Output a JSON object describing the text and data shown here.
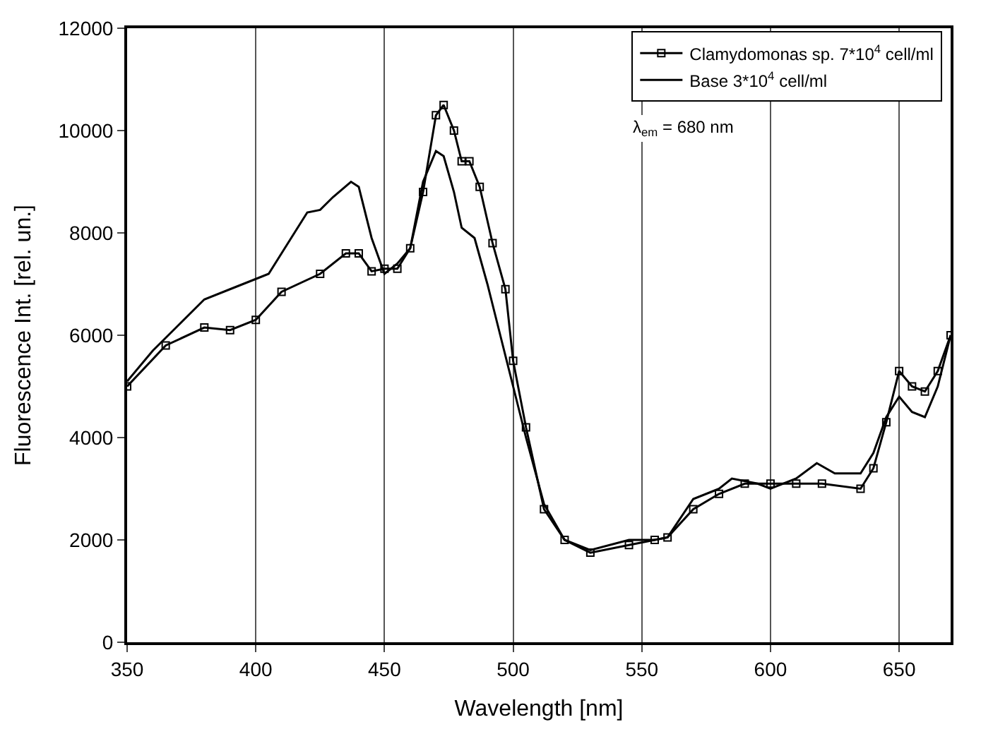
{
  "chart_data": {
    "type": "line",
    "xlabel": "Wavelength [nm]",
    "ylabel": "Fluorescence Int. [rel. un.]",
    "xlim": [
      350,
      670
    ],
    "ylim": [
      0,
      12000
    ],
    "xticks": [
      350,
      400,
      450,
      500,
      550,
      600,
      650
    ],
    "yticks": [
      0,
      2000,
      4000,
      6000,
      8000,
      10000,
      12000
    ],
    "grid": "x",
    "legend": "top right",
    "annotations": [
      "λ$_{em}$ = 680 nm"
    ],
    "series": [
      {
        "name": "Clamydomonas sp. 7*10$^{4}$ cell/ml",
        "color": "#000000",
        "marker": "square",
        "x": [
          350,
          365,
          380,
          390,
          400,
          410,
          425,
          435,
          440,
          445,
          450,
          455,
          460,
          465,
          470,
          473,
          477,
          480,
          483,
          487,
          492,
          497,
          500,
          505,
          512,
          520,
          530,
          545,
          555,
          560,
          570,
          580,
          590,
          600,
          610,
          620,
          635,
          640,
          645,
          650,
          655,
          660,
          665,
          670
        ],
        "values": [
          5000,
          5800,
          6150,
          6100,
          6300,
          6850,
          7200,
          7600,
          7600,
          7250,
          7300,
          7300,
          7700,
          8800,
          10300,
          10500,
          10000,
          9400,
          9400,
          8900,
          7800,
          6900,
          5500,
          4200,
          2600,
          2000,
          1750,
          1900,
          2000,
          2050,
          2600,
          2900,
          3100,
          3100,
          3100,
          3100,
          3000,
          3400,
          4300,
          5300,
          5000,
          4900,
          5300,
          6000
        ]
      },
      {
        "name": "Base 3*10$^{4}$ cell/ml",
        "color": "#000000",
        "marker": "none",
        "x": [
          350,
          360,
          370,
          380,
          390,
          400,
          405,
          410,
          415,
          420,
          425,
          430,
          437,
          440,
          445,
          450,
          455,
          460,
          465,
          470,
          473,
          477,
          480,
          485,
          490,
          495,
          500,
          505,
          512,
          520,
          530,
          545,
          555,
          560,
          570,
          580,
          585,
          595,
          600,
          610,
          618,
          625,
          635,
          640,
          645,
          650,
          655,
          660,
          665,
          670
        ],
        "values": [
          5100,
          5700,
          6200,
          6700,
          6900,
          7100,
          7200,
          7600,
          8000,
          8400,
          8450,
          8700,
          9000,
          8900,
          7900,
          7200,
          7400,
          7700,
          9000,
          9600,
          9500,
          8800,
          8100,
          7900,
          7000,
          6000,
          5000,
          4000,
          2700,
          2000,
          1800,
          2000,
          2000,
          2050,
          2800,
          3000,
          3200,
          3100,
          3000,
          3200,
          3500,
          3300,
          3300,
          3700,
          4400,
          4800,
          4500,
          4400,
          5000,
          6000
        ]
      }
    ]
  }
}
